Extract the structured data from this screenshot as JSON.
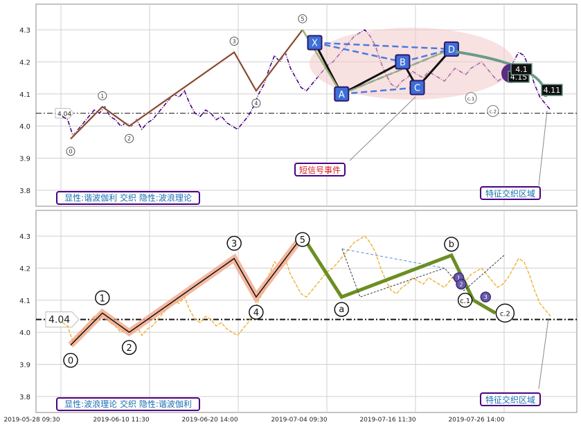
{
  "chart_data": [
    {
      "type": "line",
      "panel": "top",
      "ylim": [
        3.75,
        4.38
      ],
      "y_ticks": [
        "3.8",
        "3.9",
        "4.0",
        "4.1",
        "4.2",
        "4.3"
      ],
      "hline": {
        "value": 4.04,
        "label": "4.04"
      },
      "series": [
        {
          "values": [
            4.03,
            4.02,
            3.97,
            3.99,
            4.01,
            4.03,
            4.05,
            4.04,
            4.06,
            4.03,
            4.02,
            4.0,
            4.01,
            4.0,
            4.02,
            3.99,
            4.01,
            4.02,
            4.04,
            4.06,
            4.08,
            4.1,
            4.09,
            4.11,
            4.07,
            4.04,
            4.03,
            4.05,
            4.04,
            4.02,
            4.03,
            4.01,
            4.0,
            3.99,
            4.01,
            4.03,
            4.06,
            4.1,
            4.13,
            4.18,
            4.22,
            4.2,
            4.23,
            4.18,
            4.15,
            4.12,
            4.11,
            4.13,
            4.15,
            4.17,
            4.19,
            4.2,
            4.22,
            4.24,
            4.26,
            4.28,
            4.29,
            4.3,
            4.28,
            4.25,
            4.2,
            4.16,
            4.13,
            4.12,
            4.14,
            4.15,
            4.17,
            4.16,
            4.15,
            4.17,
            4.16,
            4.15,
            4.14,
            4.16,
            4.18,
            4.17,
            4.16,
            4.18,
            4.19,
            4.2,
            4.18,
            4.16,
            4.14,
            4.15,
            4.17,
            4.2,
            4.23,
            4.22,
            4.18,
            4.13,
            4.09,
            4.07,
            4.05
          ]
        }
      ],
      "wave_points": [
        {
          "label": "0",
          "x": 0.0,
          "y": 3.96
        },
        {
          "label": "1",
          "x": 0.065,
          "y": 4.06
        },
        {
          "label": "2",
          "x": 0.12,
          "y": 4.0
        },
        {
          "label": "3",
          "x": 0.335,
          "y": 4.23
        },
        {
          "label": "4",
          "x": 0.38,
          "y": 4.11
        },
        {
          "label": "5",
          "x": 0.475,
          "y": 4.3
        }
      ],
      "harmonic_points": [
        {
          "label": "X",
          "x": 0.5,
          "y": 4.26
        },
        {
          "label": "A",
          "x": 0.555,
          "y": 4.1
        },
        {
          "label": "B",
          "x": 0.68,
          "y": 4.2
        },
        {
          "label": "C",
          "x": 0.71,
          "y": 4.12
        },
        {
          "label": "D",
          "x": 0.78,
          "y": 4.24
        }
      ],
      "secondary_points": [
        {
          "label": "c.1",
          "x": 0.82,
          "y": 4.1
        },
        {
          "label": "c.2",
          "x": 0.865,
          "y": 4.06
        }
      ],
      "tags": [
        "4.15",
        "4.11",
        "4.1"
      ],
      "annotations": [
        {
          "text": "短信号事件",
          "color": "#d22020"
        },
        {
          "text": "特征交织区域",
          "color": "#1a6fb0"
        }
      ],
      "legend": {
        "text": "显性:谐波伽利 交织 隐性:波浪理论"
      }
    },
    {
      "type": "line",
      "panel": "bottom",
      "ylim": [
        3.75,
        4.38
      ],
      "y_ticks": [
        "3.8",
        "3.9",
        "4.0",
        "4.1",
        "4.2",
        "4.3"
      ],
      "x_ticks": [
        "2019-05-28 09:30",
        "2019-06-10 11:30",
        "2019-06-20 14:00",
        "2019-07-04 09:30",
        "2019-07-16 11:30",
        "2019-07-26 14:00"
      ],
      "hline": {
        "value": 4.04,
        "label": "4.04"
      },
      "wave_points": [
        {
          "label": "0",
          "x": 0.0,
          "y": 3.96
        },
        {
          "label": "1",
          "x": 0.065,
          "y": 4.06
        },
        {
          "label": "2",
          "x": 0.12,
          "y": 4.0
        },
        {
          "label": "3",
          "x": 0.335,
          "y": 4.23
        },
        {
          "label": "4",
          "x": 0.38,
          "y": 4.11
        },
        {
          "label": "5",
          "x": 0.475,
          "y": 4.3
        }
      ],
      "abc_points": [
        {
          "label": "a",
          "x": 0.555,
          "y": 4.11
        },
        {
          "label": "b",
          "x": 0.78,
          "y": 4.24
        },
        {
          "label": "c.1",
          "x": 0.825,
          "y": 4.1
        },
        {
          "label": "c.2",
          "x": 0.87,
          "y": 4.06
        }
      ],
      "small_marks": [
        {
          "label": "1",
          "x": 0.795,
          "y": 4.17
        },
        {
          "label": "2",
          "x": 0.8,
          "y": 4.15
        },
        {
          "label": "3",
          "x": 0.85,
          "y": 4.11
        }
      ],
      "annotations": [
        {
          "text": "特征交织区域",
          "color": "#1a6fb0"
        }
      ],
      "legend": {
        "text": "显性:波浪理论 交织 隐性:谐波伽利"
      }
    }
  ]
}
